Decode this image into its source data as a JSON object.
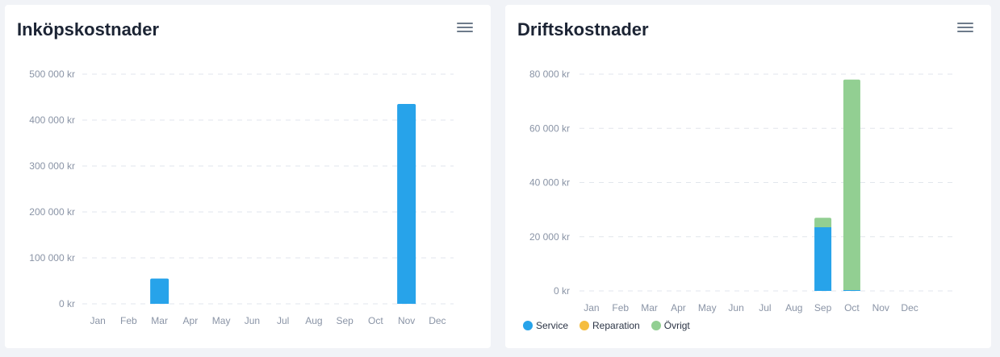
{
  "chart_data": [
    {
      "type": "bar",
      "title": "Inköpskostnader",
      "categories": [
        "Jan",
        "Feb",
        "Mar",
        "Apr",
        "May",
        "Jun",
        "Jul",
        "Aug",
        "Sep",
        "Oct",
        "Nov",
        "Dec"
      ],
      "series": [
        {
          "values": [
            0,
            0,
            55000,
            0,
            0,
            0,
            0,
            0,
            0,
            0,
            435000,
            0
          ],
          "color": "#27a3ea"
        }
      ],
      "yticks": [
        "0 kr",
        "100 000 kr",
        "200 000 kr",
        "300 000 kr",
        "400 000 kr",
        "500 000 kr"
      ],
      "ylim": [
        0,
        500000
      ],
      "grid": true
    },
    {
      "type": "bar",
      "stacked": true,
      "title": "Driftskostnader",
      "categories": [
        "Jan",
        "Feb",
        "Mar",
        "Apr",
        "May",
        "Jun",
        "Jul",
        "Aug",
        "Sep",
        "Oct",
        "Nov",
        "Dec"
      ],
      "series": [
        {
          "name": "Service",
          "color": "#27a3ea",
          "values": [
            0,
            0,
            0,
            0,
            0,
            0,
            0,
            0,
            23500,
            300,
            0,
            0
          ]
        },
        {
          "name": "Reparation",
          "color": "#f5bd3f",
          "values": [
            0,
            0,
            0,
            0,
            0,
            0,
            0,
            0,
            0,
            0,
            0,
            0
          ]
        },
        {
          "name": "Övrigt",
          "color": "#92cf92",
          "values": [
            0,
            0,
            0,
            0,
            0,
            0,
            0,
            0,
            3500,
            77700,
            0,
            0
          ]
        }
      ],
      "yticks": [
        "0 kr",
        "20 000 kr",
        "40 000 kr",
        "60 000 kr",
        "80 000 kr"
      ],
      "ylim": [
        0,
        80000
      ],
      "grid": true,
      "legend": "bottom-left"
    }
  ],
  "menu_icon": "hamburger-menu-icon"
}
